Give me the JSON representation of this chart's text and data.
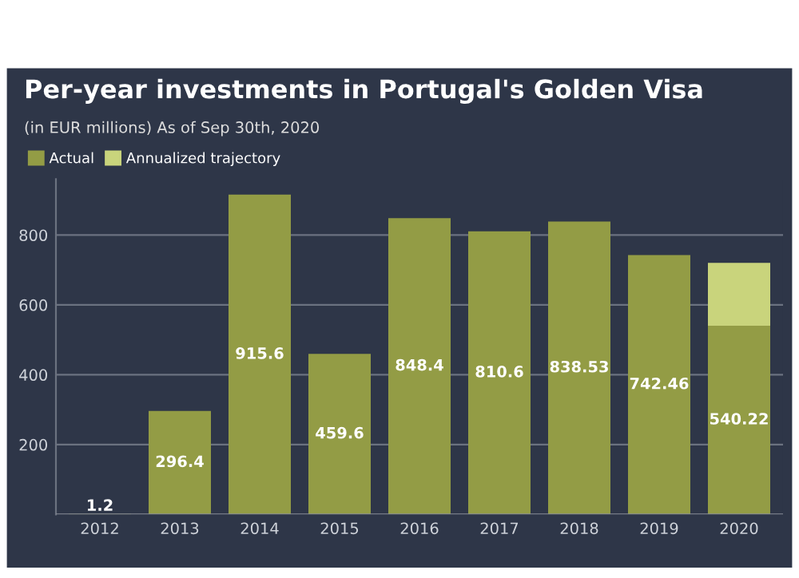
{
  "chart_data": {
    "type": "bar",
    "title": "Per-year investments in Portugal's Golden Visa",
    "subtitle": "(in EUR millions) As of Sep 30th, 2020",
    "categories": [
      "2012",
      "2013",
      "2014",
      "2015",
      "2016",
      "2017",
      "2018",
      "2019",
      "2020"
    ],
    "stacked": true,
    "series": [
      {
        "name": "Actual",
        "color": "#939c45",
        "values": [
          1.2,
          296.4,
          915.6,
          459.6,
          848.4,
          810.6,
          838.53,
          742.46,
          540.22
        ],
        "value_labels": [
          "1.2",
          "296.4",
          "915.6",
          "459.6",
          "848.4",
          "810.6",
          "838.53",
          "742.46",
          "540.22"
        ]
      },
      {
        "name": "Annualized trajectory",
        "color": "#c9d47c",
        "values": [
          null,
          null,
          null,
          null,
          null,
          null,
          null,
          null,
          180
        ]
      }
    ],
    "ylim": [
      0,
      960
    ],
    "yticks": [
      200,
      400,
      600,
      800
    ],
    "grid": "y",
    "legend": "top left"
  }
}
